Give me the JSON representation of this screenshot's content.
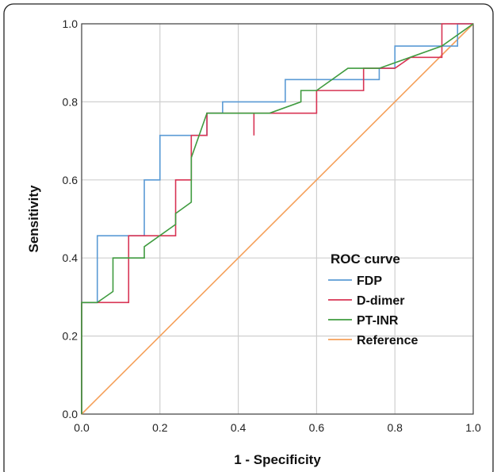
{
  "chart_data": {
    "type": "line",
    "title": "",
    "xlabel": "1 - Specificity",
    "ylabel": "Sensitivity",
    "xlim": [
      0,
      1
    ],
    "ylim": [
      0,
      1
    ],
    "xticks": [
      "0.0",
      "0.2",
      "0.4",
      "0.6",
      "0.8",
      "1.0"
    ],
    "yticks": [
      "0.0",
      "0.2",
      "0.4",
      "0.6",
      "0.8",
      "1.0"
    ],
    "grid": true,
    "legend": {
      "title": "ROC curve",
      "placement": "center-right"
    },
    "series": [
      {
        "name": "FDP",
        "color": "#5b9bd5",
        "points": [
          [
            0,
            0
          ],
          [
            0,
            0.286
          ],
          [
            0.04,
            0.286
          ],
          [
            0.04,
            0.457
          ],
          [
            0.16,
            0.457
          ],
          [
            0.16,
            0.6
          ],
          [
            0.2,
            0.6
          ],
          [
            0.2,
            0.714
          ],
          [
            0.32,
            0.714
          ],
          [
            0.32,
            0.771
          ],
          [
            0.36,
            0.771
          ],
          [
            0.36,
            0.8
          ],
          [
            0.52,
            0.8
          ],
          [
            0.52,
            0.857
          ],
          [
            0.76,
            0.857
          ],
          [
            0.76,
            0.886
          ],
          [
            0.8,
            0.886
          ],
          [
            0.8,
            0.943
          ],
          [
            0.96,
            0.943
          ],
          [
            0.96,
            1.0
          ],
          [
            1.0,
            1.0
          ]
        ]
      },
      {
        "name": "D-dimer",
        "color": "#d83454",
        "points": [
          [
            0,
            0
          ],
          [
            0,
            0.286
          ],
          [
            0.12,
            0.286
          ],
          [
            0.12,
            0.457
          ],
          [
            0.24,
            0.457
          ],
          [
            0.24,
            0.6
          ],
          [
            0.28,
            0.6
          ],
          [
            0.28,
            0.714
          ],
          [
            0.32,
            0.714
          ],
          [
            0.32,
            0.771
          ],
          [
            0.44,
            0.771
          ],
          [
            0.44,
            0.714
          ],
          [
            0.44,
            0.771
          ],
          [
            0.6,
            0.771
          ],
          [
            0.6,
            0.829
          ],
          [
            0.72,
            0.829
          ],
          [
            0.72,
            0.886
          ],
          [
            0.8,
            0.886
          ],
          [
            0.84,
            0.914
          ],
          [
            0.92,
            0.914
          ],
          [
            0.92,
            1.0
          ],
          [
            1.0,
            1.0
          ]
        ]
      },
      {
        "name": "PT-INR",
        "color": "#3f9b3f",
        "points": [
          [
            0,
            0
          ],
          [
            0,
            0.286
          ],
          [
            0.04,
            0.286
          ],
          [
            0.08,
            0.314
          ],
          [
            0.08,
            0.4
          ],
          [
            0.16,
            0.4
          ],
          [
            0.16,
            0.429
          ],
          [
            0.24,
            0.486
          ],
          [
            0.24,
            0.514
          ],
          [
            0.28,
            0.543
          ],
          [
            0.28,
            0.657
          ],
          [
            0.32,
            0.771
          ],
          [
            0.48,
            0.771
          ],
          [
            0.56,
            0.8
          ],
          [
            0.56,
            0.829
          ],
          [
            0.6,
            0.829
          ],
          [
            0.68,
            0.886
          ],
          [
            0.76,
            0.886
          ],
          [
            0.92,
            0.943
          ],
          [
            1.0,
            1.0
          ]
        ]
      },
      {
        "name": "Reference",
        "color": "#f5a05a",
        "points": [
          [
            0,
            0
          ],
          [
            1,
            1
          ]
        ]
      }
    ]
  }
}
